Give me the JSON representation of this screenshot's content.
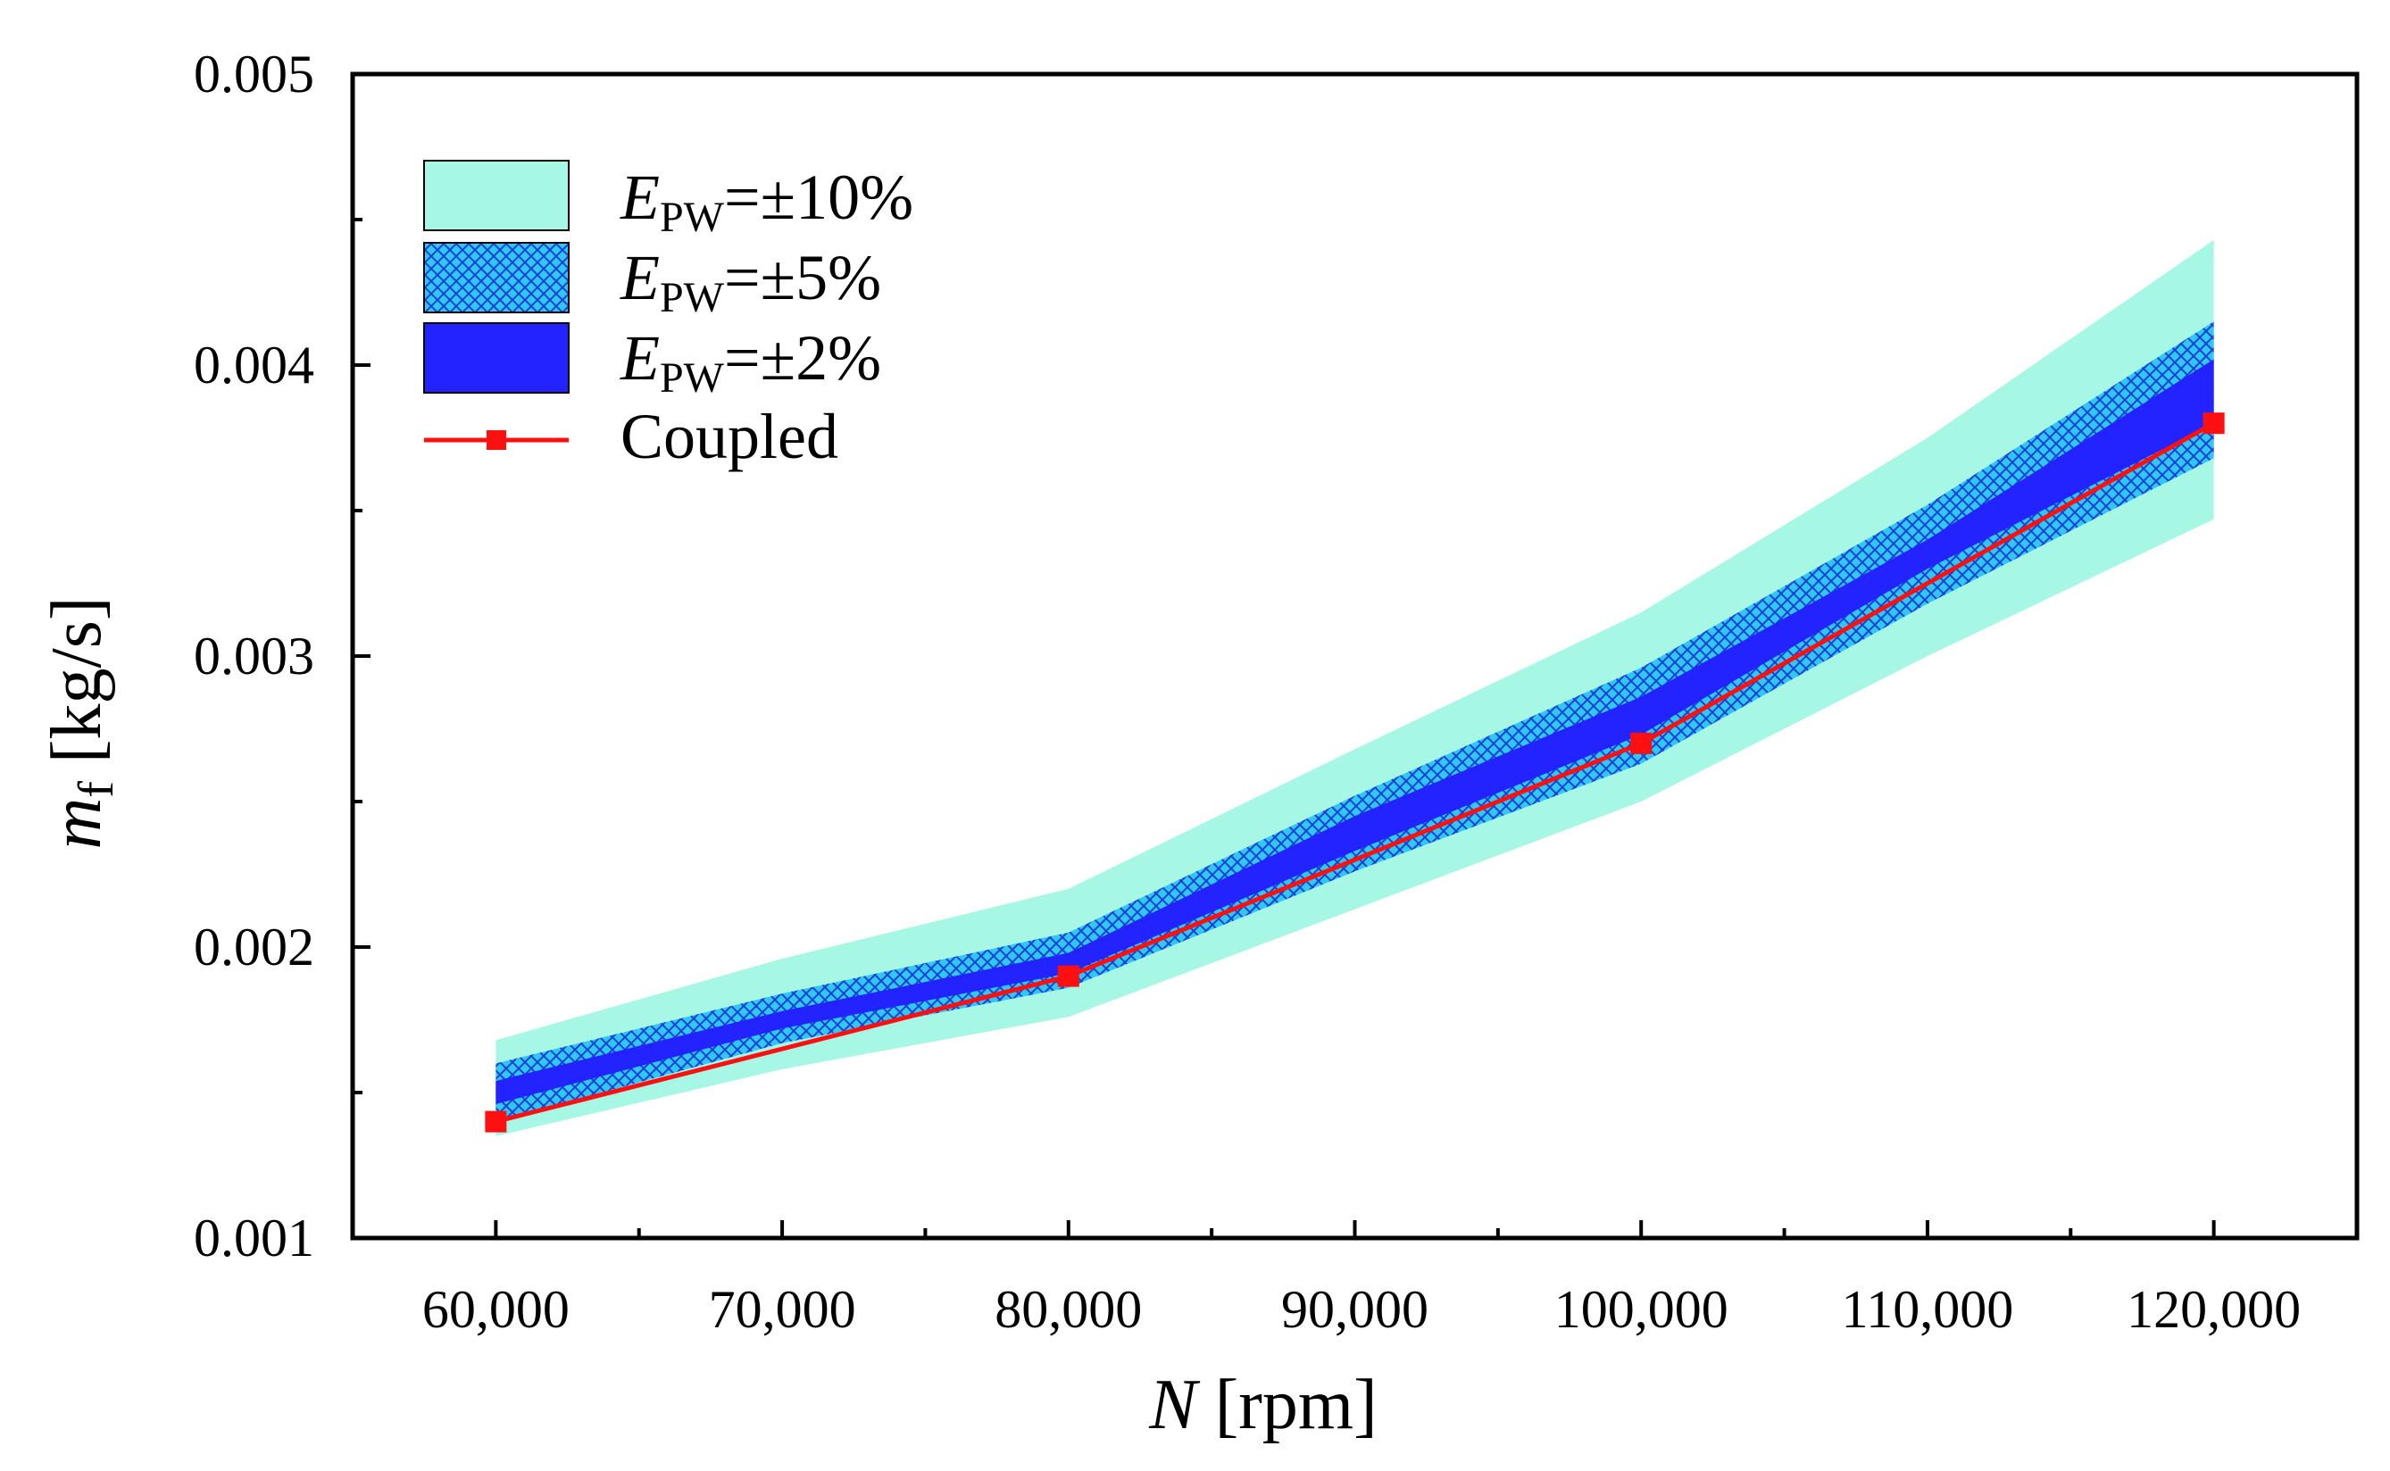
{
  "chart_data": {
    "type": "line",
    "title": "",
    "xlabel": {
      "symbol": "N",
      "unit": " [rpm]"
    },
    "ylabel": {
      "symbol": "m",
      "subscript": "f",
      "unit": " [kg/s]"
    },
    "xlim": [
      55000,
      125000
    ],
    "ylim": [
      0.001,
      0.005
    ],
    "x_ticks": [
      60000,
      70000,
      80000,
      90000,
      100000,
      110000,
      120000
    ],
    "x_tick_labels": [
      "60,000",
      "70,000",
      "80,000",
      "90,000",
      "100,000",
      "110,000",
      "120,000"
    ],
    "y_ticks": [
      0.001,
      0.002,
      0.003,
      0.004,
      0.005
    ],
    "y_tick_labels": [
      "0.001",
      "0.002",
      "0.003",
      "0.004",
      "0.005"
    ],
    "grid": false,
    "legend_position": "top-left",
    "colors": {
      "band10": "#a6f7e4",
      "band5_fill": "#2fc8f5",
      "band5_hatch": "#1a40d8",
      "band2": "#2323ff",
      "line": "#ff1010",
      "marker": "#ff1010"
    },
    "bands": [
      {
        "name": "band10",
        "label_symbol": "E",
        "label_subscript": "PW",
        "label_value": "=±10%",
        "x": [
          60000,
          70000,
          80000,
          90000,
          100000,
          110000,
          120000
        ],
        "upper": [
          0.00168,
          0.00196,
          0.0022,
          0.00268,
          0.00315,
          0.00375,
          0.00443
        ],
        "lower": [
          0.00135,
          0.00158,
          0.00176,
          0.00213,
          0.0025,
          0.003,
          0.00347
        ]
      },
      {
        "name": "band5",
        "label_symbol": "E",
        "label_subscript": "PW",
        "label_value": "=±5%",
        "x": [
          60000,
          70000,
          80000,
          90000,
          100000,
          110000,
          120000
        ],
        "upper": [
          0.0016,
          0.00184,
          0.00205,
          0.00252,
          0.00296,
          0.00352,
          0.00415
        ],
        "lower": [
          0.0014,
          0.00167,
          0.00186,
          0.00226,
          0.00263,
          0.00318,
          0.00368
        ]
      },
      {
        "name": "band2",
        "label_symbol": "E",
        "label_subscript": "PW",
        "label_value": "=±2%",
        "x": [
          60000,
          70000,
          80000,
          90000,
          100000,
          110000,
          120000
        ],
        "upper": [
          0.00154,
          0.00178,
          0.00198,
          0.00245,
          0.00286,
          0.0034,
          0.00402
        ],
        "lower": [
          0.00146,
          0.00172,
          0.00191,
          0.00233,
          0.00273,
          0.0033,
          0.0038
        ]
      }
    ],
    "series": [
      {
        "name": "Coupled",
        "x": [
          60000,
          80000,
          100000,
          120000
        ],
        "values": [
          0.0014,
          0.0019,
          0.0027,
          0.0038
        ]
      }
    ]
  }
}
